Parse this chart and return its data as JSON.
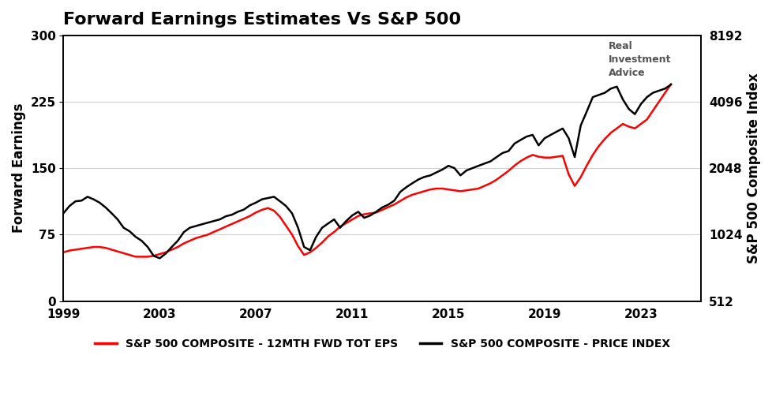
{
  "title": "Forward Earnings Estimates Vs S&P 500",
  "ylabel_left": "Forward Earnings",
  "ylabel_right": "S&P 500 Composite Index",
  "legend_eps": "S&P 500 COMPOSITE - 12MTH FWD TOT EPS",
  "legend_price": "S&P 500 COMPOSITE - PRICE INDEX",
  "color_eps": "#ff0000",
  "color_price": "#000000",
  "background_color": "#ffffff",
  "ylim_left": [
    0,
    300
  ],
  "ylim_right": [
    512,
    8192
  ],
  "yticks_left": [
    0,
    75,
    150,
    225,
    300
  ],
  "yticks_right": [
    512,
    1024,
    2048,
    4096,
    8192
  ],
  "xticks": [
    1999,
    2003,
    2007,
    2011,
    2015,
    2019,
    2023
  ],
  "xlim": [
    1999,
    2025.5
  ],
  "title_fontsize": 16,
  "tick_fontsize": 11,
  "label_fontsize": 12,
  "legend_fontsize": 10,
  "linewidth": 1.8,
  "eps": [
    55,
    57,
    58,
    59,
    60,
    61,
    61,
    60,
    58,
    56,
    54,
    52,
    50,
    50,
    50,
    51,
    53,
    55,
    58,
    61,
    65,
    68,
    71,
    73,
    75,
    78,
    81,
    84,
    87,
    90,
    93,
    96,
    100,
    103,
    105,
    102,
    95,
    85,
    75,
    62,
    52,
    55,
    60,
    66,
    73,
    78,
    84,
    88,
    92,
    96,
    98,
    99,
    100,
    103,
    106,
    109,
    113,
    117,
    120,
    122,
    124,
    126,
    127,
    127,
    126,
    125,
    124,
    125,
    126,
    127,
    130,
    133,
    137,
    142,
    147,
    153,
    158,
    162,
    165,
    163,
    162,
    162,
    163,
    164,
    143,
    130,
    140,
    153,
    165,
    175,
    183,
    190,
    195,
    200,
    197,
    195,
    200,
    205,
    215,
    225,
    235,
    245
  ],
  "price": [
    1280,
    1380,
    1450,
    1460,
    1520,
    1480,
    1430,
    1360,
    1280,
    1200,
    1100,
    1060,
    1000,
    960,
    900,
    820,
    800,
    840,
    900,
    960,
    1050,
    1100,
    1120,
    1140,
    1160,
    1180,
    1200,
    1240,
    1260,
    1300,
    1330,
    1390,
    1430,
    1480,
    1500,
    1520,
    1450,
    1380,
    1280,
    1100,
    900,
    870,
    1000,
    1100,
    1150,
    1200,
    1100,
    1180,
    1250,
    1300,
    1220,
    1250,
    1300,
    1360,
    1400,
    1460,
    1600,
    1680,
    1750,
    1820,
    1870,
    1900,
    1960,
    2020,
    2100,
    2050,
    1900,
    2000,
    2050,
    2100,
    2150,
    2200,
    2300,
    2400,
    2450,
    2650,
    2750,
    2850,
    2900,
    2600,
    2800,
    2900,
    3000,
    3100,
    2800,
    2300,
    3200,
    3700,
    4300,
    4400,
    4500,
    4700,
    4800,
    4200,
    3800,
    3600,
    4000,
    4300,
    4500,
    4600,
    4700,
    4900
  ]
}
